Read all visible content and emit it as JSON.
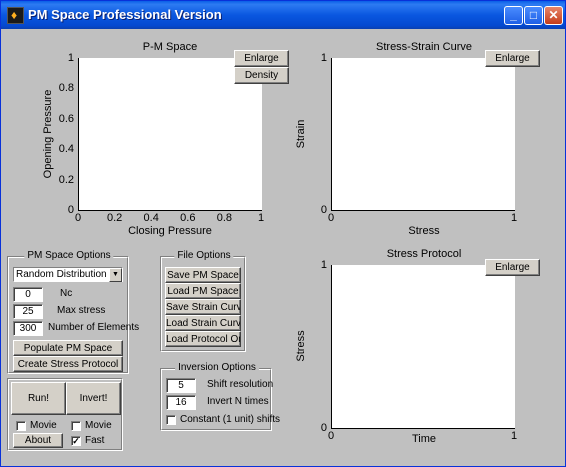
{
  "window": {
    "title": "PM Space Professional Version",
    "minimize_label": "_",
    "maximize_label": "□",
    "close_label": "✕"
  },
  "icons": {
    "app": "matlab-icon"
  },
  "charts": {
    "pm": {
      "title": "P-M Space",
      "xlabel": "Closing Pressure",
      "ylabel": "Opening Pressure"
    },
    "stress_strain": {
      "title": "Stress-Strain Curve",
      "xlabel": "Stress",
      "ylabel": "Strain"
    },
    "protocol": {
      "title": "Stress Protocol",
      "xlabel": "Time",
      "ylabel": "Stress"
    }
  },
  "chart_data": [
    {
      "type": "line",
      "title": "P-M Space",
      "xlabel": "Closing Pressure",
      "ylabel": "Opening Pressure",
      "xlim": [
        0,
        1
      ],
      "ylim": [
        0,
        1
      ],
      "xticks": [
        "0",
        "0.2",
        "0.4",
        "0.6",
        "0.8",
        "1"
      ],
      "yticks": [
        "0",
        "0.2",
        "0.4",
        "0.6",
        "0.8",
        "1"
      ],
      "series": []
    },
    {
      "type": "line",
      "title": "Stress-Strain Curve",
      "xlabel": "Stress",
      "ylabel": "Strain",
      "xlim": [
        0,
        1
      ],
      "ylim": [
        0,
        1
      ],
      "xticks": [
        "0",
        "1"
      ],
      "yticks": [
        "0",
        "1"
      ],
      "series": []
    },
    {
      "type": "line",
      "title": "Stress Protocol",
      "xlabel": "Time",
      "ylabel": "Stress",
      "xlim": [
        0,
        1
      ],
      "ylim": [
        0,
        1
      ],
      "xticks": [
        "0",
        "1"
      ],
      "yticks": [
        "0",
        "1"
      ],
      "series": []
    }
  ],
  "buttons": {
    "enlarge_pm": "Enlarge",
    "density": "Density",
    "enlarge_ss": "Enlarge",
    "enlarge_protocol": "Enlarge",
    "populate": "Populate PM Space",
    "create_protocol": "Create Stress Protocol",
    "run": "Run!",
    "invert": "Invert!",
    "about": "About"
  },
  "pm_options": {
    "title": "PM Space Options",
    "distribution": "Random Distribution",
    "nc_value": "0",
    "nc_label": "Nc",
    "max_stress_value": "25",
    "max_stress_label": "Max stress",
    "elements_value": "300",
    "elements_label": "Number of Elements"
  },
  "file_options": {
    "title": "File Options",
    "save_pm": "Save PM Space",
    "load_pm": "Load PM Space",
    "save_strain": "Save Strain Curve",
    "load_strain": "Load Strain Curve",
    "load_protocol": "Load Protocol Only"
  },
  "inversion_options": {
    "title": "Inversion Options",
    "shift_value": "5",
    "shift_label": "Shift resolution",
    "invert_n_value": "16",
    "invert_n_label": "Invert N times",
    "constant_label": "Constant (1 unit) shifts"
  },
  "run_panel": {
    "movie1_label": "Movie",
    "movie2_label": "Movie",
    "fast_label": "Fast",
    "fast_check": "✓"
  }
}
